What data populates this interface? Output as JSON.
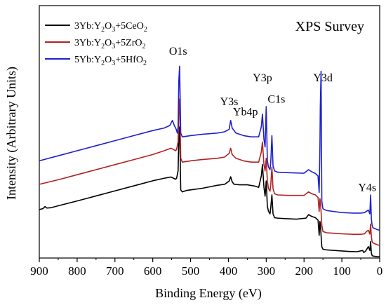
{
  "chart_data": {
    "type": "line",
    "title": "XPS Survey",
    "xlabel": "Binding Energy (eV)",
    "ylabel": "Intensity (Arbitrary Units)",
    "xlim": [
      900,
      0
    ],
    "x_reversed": true,
    "ylim": [
      0,
      100
    ],
    "y_ticks_shown": false,
    "x_ticks": [
      900,
      800,
      700,
      600,
      500,
      400,
      300,
      200,
      100,
      0
    ],
    "grid": false,
    "legend_position": "top-left",
    "series": [
      {
        "name": "3Yb:Y2O3+5CeO2",
        "legend": {
          "parts": [
            "3Yb:Y",
            "2",
            "O",
            "3",
            "+5CeO",
            "2"
          ]
        },
        "color": "#000000",
        "x": [
          900,
          890,
          885,
          880,
          870,
          850,
          800,
          750,
          700,
          650,
          600,
          570,
          552,
          545,
          540,
          537,
          533,
          531,
          529,
          526,
          522,
          510,
          490,
          470,
          450,
          430,
          410,
          398,
          394,
          390,
          385,
          370,
          350,
          330,
          320,
          313,
          310,
          306,
          303,
          300,
          297,
          294,
          290,
          288,
          285,
          282,
          278,
          270,
          250,
          220,
          195,
          188,
          180,
          170,
          163,
          160,
          158,
          157,
          155,
          153,
          150,
          140,
          120,
          100,
          80,
          60,
          45,
          42,
          38,
          34,
          30,
          26,
          24,
          22,
          20,
          18,
          10,
          5,
          0
        ],
        "y": [
          19.2,
          19.6,
          20.4,
          19.8,
          19.9,
          20.7,
          22.6,
          24.6,
          26.6,
          28.6,
          30.6,
          31.6,
          32.1,
          31.6,
          31.2,
          31.6,
          34.5,
          48.0,
          52.0,
          27.0,
          26.2,
          26.8,
          27.2,
          27.6,
          28.2,
          28.8,
          29.2,
          30.5,
          32.2,
          30.2,
          29.2,
          29.0,
          29.0,
          28.5,
          28.0,
          32.5,
          37.0,
          28.0,
          24.5,
          30.5,
          20.5,
          18.5,
          17.5,
          20.0,
          25.0,
          17.5,
          16.0,
          15.8,
          15.6,
          15.4,
          15.8,
          17.2,
          16.5,
          16.0,
          15.0,
          9.0,
          14.5,
          13.5,
          9.0,
          4.5,
          3.5,
          3.2,
          3.0,
          2.8,
          2.6,
          2.5,
          3.0,
          2.2,
          2.6,
          3.5,
          4.5,
          3.0,
          6.5,
          2.0,
          1.0,
          0.8,
          0.6,
          0.5,
          0.5
        ]
      },
      {
        "name": "3Yb:Y2O3+5ZrO2",
        "legend": {
          "parts": [
            "3Yb:Y",
            "2",
            "O",
            "3",
            "+5ZrO",
            "2"
          ]
        },
        "color": "#b22222",
        "x": [
          900,
          850,
          800,
          750,
          700,
          650,
          600,
          570,
          552,
          545,
          540,
          537,
          533,
          531,
          529,
          526,
          522,
          500,
          470,
          430,
          410,
          398,
          394,
          390,
          380,
          360,
          340,
          320,
          313,
          310,
          306,
          303,
          300,
          297,
          294,
          290,
          288,
          285,
          282,
          278,
          270,
          240,
          200,
          188,
          180,
          170,
          163,
          160,
          158,
          157,
          155,
          153,
          150,
          140,
          120,
          100,
          70,
          50,
          40,
          35,
          30,
          26,
          24,
          22,
          20,
          18,
          10,
          5,
          0
        ],
        "y": [
          29.2,
          31.0,
          33.0,
          35.0,
          37.0,
          39.0,
          41.0,
          42.5,
          43.5,
          43.0,
          42.5,
          43.0,
          46.0,
          59.0,
          63.0,
          39.5,
          38.0,
          38.5,
          39.0,
          39.5,
          40.0,
          41.5,
          43.5,
          41.0,
          39.5,
          38.5,
          38.0,
          38.0,
          42.0,
          46.0,
          37.0,
          34.5,
          39.5,
          30.5,
          27.5,
          26.5,
          29.0,
          36.0,
          27.5,
          25.5,
          25.0,
          24.8,
          24.8,
          26.2,
          25.5,
          25.0,
          24.0,
          18.5,
          23.5,
          22.5,
          18.5,
          13.0,
          10.5,
          10.0,
          9.8,
          9.6,
          9.4,
          9.4,
          9.6,
          10.5,
          11.0,
          9.5,
          13.5,
          8.5,
          6.5,
          6.0,
          5.5,
          5.2,
          5.0
        ]
      },
      {
        "name": "5Yb:Y2O3+5HfO2",
        "legend": {
          "parts": [
            "5Yb:Y",
            "2",
            "O",
            "3",
            "+5HfO",
            "2"
          ]
        },
        "color": "#1f1fd0",
        "x": [
          900,
          850,
          800,
          750,
          700,
          650,
          600,
          570,
          555,
          548,
          543,
          538,
          535,
          533,
          531,
          529,
          526,
          522,
          500,
          470,
          430,
          410,
          398,
          394,
          390,
          380,
          360,
          340,
          320,
          313,
          310,
          306,
          303,
          300,
          297,
          294,
          290,
          288,
          285,
          282,
          278,
          270,
          240,
          200,
          188,
          180,
          170,
          163,
          160,
          158,
          157,
          155,
          153,
          150,
          140,
          120,
          100,
          70,
          50,
          40,
          35,
          30,
          26,
          24,
          22,
          20,
          18,
          10,
          5,
          0
        ],
        "y": [
          38.5,
          40.5,
          42.5,
          44.5,
          46.5,
          48.5,
          50.5,
          51.5,
          52.5,
          54.5,
          52.5,
          51.0,
          49.5,
          52.0,
          70.5,
          76.0,
          49.5,
          48.0,
          48.5,
          49.0,
          49.5,
          50.0,
          51.0,
          54.5,
          51.5,
          49.5,
          48.5,
          48.0,
          48.0,
          52.0,
          57.0,
          47.0,
          44.0,
          60.0,
          38.5,
          36.0,
          35.0,
          38.0,
          48.5,
          36.5,
          34.5,
          34.0,
          33.8,
          33.6,
          35.0,
          34.2,
          33.5,
          32.5,
          26.0,
          44.0,
          60.0,
          74.0,
          22.5,
          19.5,
          18.8,
          18.4,
          18.0,
          17.8,
          17.8,
          18.0,
          18.5,
          19.0,
          17.5,
          25.0,
          15.5,
          13.0,
          12.0,
          11.5,
          11.2,
          11.0
        ]
      }
    ],
    "annotations": [
      {
        "text": "O1s",
        "x": 533,
        "y": 80.5
      },
      {
        "text": "Y3s",
        "x": 398,
        "y": 60.5
      },
      {
        "text": "Yb4p",
        "x": 355,
        "y": 56.5
      },
      {
        "text": "Y3p",
        "x": 310,
        "y": 70.0
      },
      {
        "text": "C1s",
        "x": 273,
        "y": 61.5
      },
      {
        "text": "Y3d",
        "x": 150,
        "y": 70.0
      },
      {
        "text": "Y4s",
        "x": 33,
        "y": 26.5
      }
    ]
  }
}
